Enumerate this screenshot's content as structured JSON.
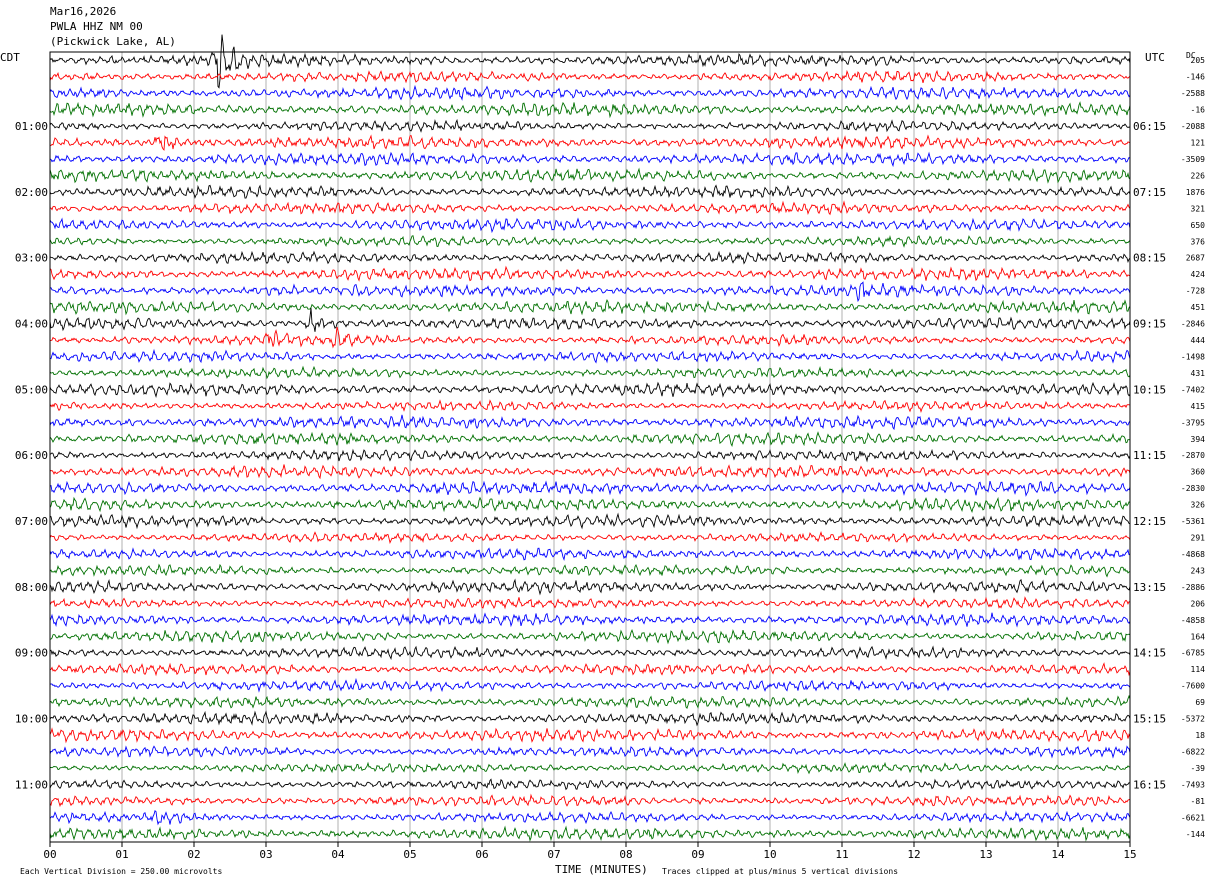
{
  "header": {
    "date": "Mar16,2026",
    "station": "PWLA HHZ NM 00",
    "location": "(Pickwick Lake, AL)"
  },
  "left_axis_label": "CDT",
  "right_axis_label": "UTC",
  "dc_label": "DC",
  "footer": {
    "scale_note": "Each Vertical Division =  250.00 microvolts",
    "xlabel": "TIME (MINUTES)",
    "clip_note": "Traces clipped at plus/minus 5 vertical divisions"
  },
  "colors": {
    "cycle": [
      "#000000",
      "#ff0000",
      "#0000ff",
      "#007000"
    ],
    "grid": "#b0b0b0"
  },
  "chart_data": {
    "type": "line",
    "xlim": [
      0,
      15
    ],
    "x_ticks": [
      "00",
      "01",
      "02",
      "03",
      "04",
      "05",
      "06",
      "07",
      "08",
      "09",
      "10",
      "11",
      "12",
      "13",
      "14",
      "15"
    ],
    "row_minutes": 15,
    "row_count": 48,
    "left_hour_labels": [
      "01:00",
      "02:00",
      "03:00",
      "04:00",
      "05:00",
      "06:00",
      "07:00",
      "08:00",
      "09:00",
      "10:00",
      "11:00"
    ],
    "right_hour_labels": [
      "06:15",
      "07:15",
      "08:15",
      "09:15",
      "10:15",
      "11:15",
      "12:15",
      "13:15",
      "14:15",
      "15:15",
      "16:15"
    ],
    "dc_offsets": [
      "205",
      "-146",
      "-2588",
      "-16",
      "-2088",
      "121",
      "-3509",
      "226",
      "1876",
      "321",
      "650",
      "376",
      "2687",
      "424",
      "-728",
      "451",
      "-2846",
      "444",
      "-1498",
      "431",
      "-7402",
      "415",
      "-3795",
      "394",
      "-2870",
      "360",
      "-2830",
      "326",
      "-5361",
      "291",
      "-4868",
      "243",
      "-2886",
      "206",
      "-4858",
      "164",
      "-6785",
      "114",
      "-7600",
      "69",
      "-5372",
      "18",
      "-6822",
      "-39",
      "-7493",
      "-81",
      "-6621",
      "-144"
    ],
    "events": [
      {
        "row": 0,
        "minute": 2.3,
        "amplitude": 3.5
      },
      {
        "row": 5,
        "minute": 1.5,
        "amplitude": 1.3
      },
      {
        "row": 16,
        "minute": 3.6,
        "amplitude": 1.4
      },
      {
        "row": 17,
        "minute": 3.9,
        "amplitude": 1.8
      },
      {
        "row": 17,
        "minute": 3.0,
        "amplitude": 1.2
      },
      {
        "row": 14,
        "minute": 11.2,
        "amplitude": 1.1
      },
      {
        "row": 46,
        "minute": 1.5,
        "amplitude": 1.0
      }
    ]
  }
}
